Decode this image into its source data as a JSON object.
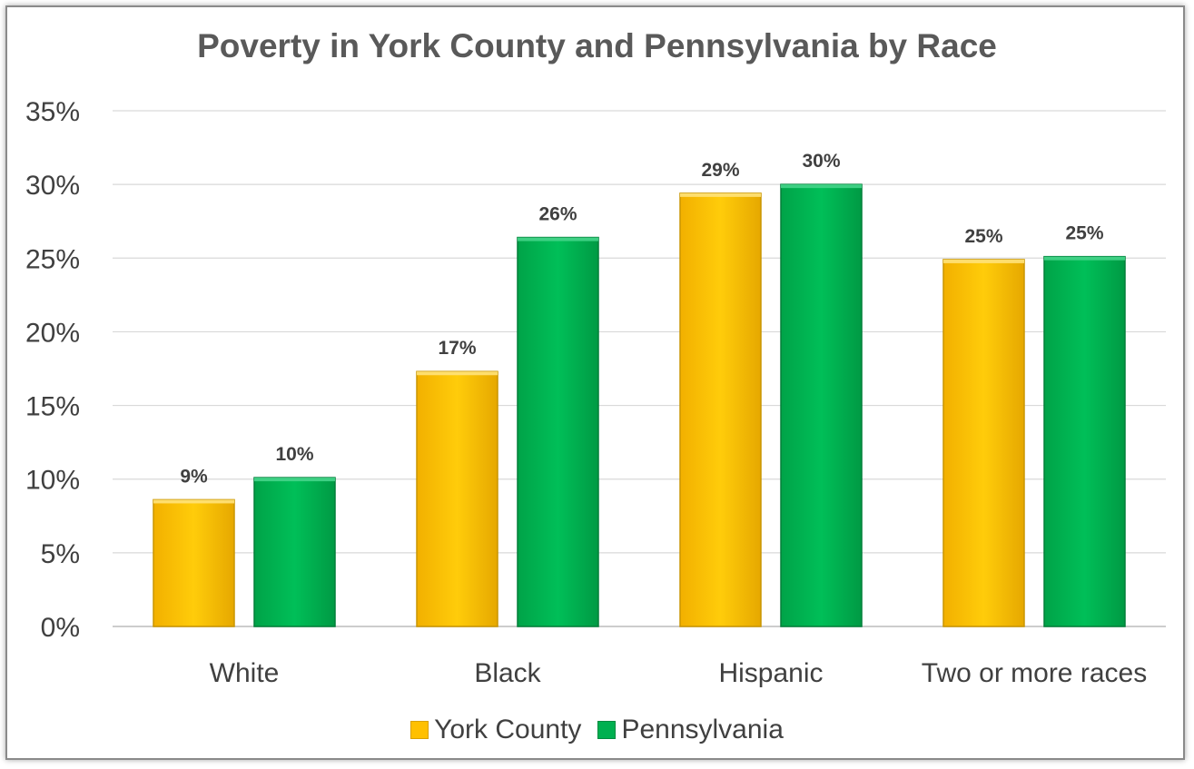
{
  "chart_data": {
    "type": "bar",
    "title": "Poverty in York County and Pennsylvania by Race",
    "categories": [
      "White",
      "Black",
      "Hispanic",
      "Two or more races"
    ],
    "series": [
      {
        "name": "York County",
        "color": "#FFC000",
        "values": [
          8.6,
          17.3,
          29.4,
          24.9
        ],
        "labels": [
          "9%",
          "17%",
          "29%",
          "25%"
        ]
      },
      {
        "name": "Pennsylvania",
        "color": "#00B050",
        "values": [
          10.1,
          26.4,
          30.0,
          25.1
        ],
        "labels": [
          "10%",
          "26%",
          "30%",
          "25%"
        ]
      }
    ],
    "ylim": [
      0,
      35
    ],
    "yticks": [
      "0%",
      "5%",
      "10%",
      "15%",
      "20%",
      "25%",
      "30%",
      "35%"
    ],
    "grid": true,
    "legend": "bottom"
  }
}
